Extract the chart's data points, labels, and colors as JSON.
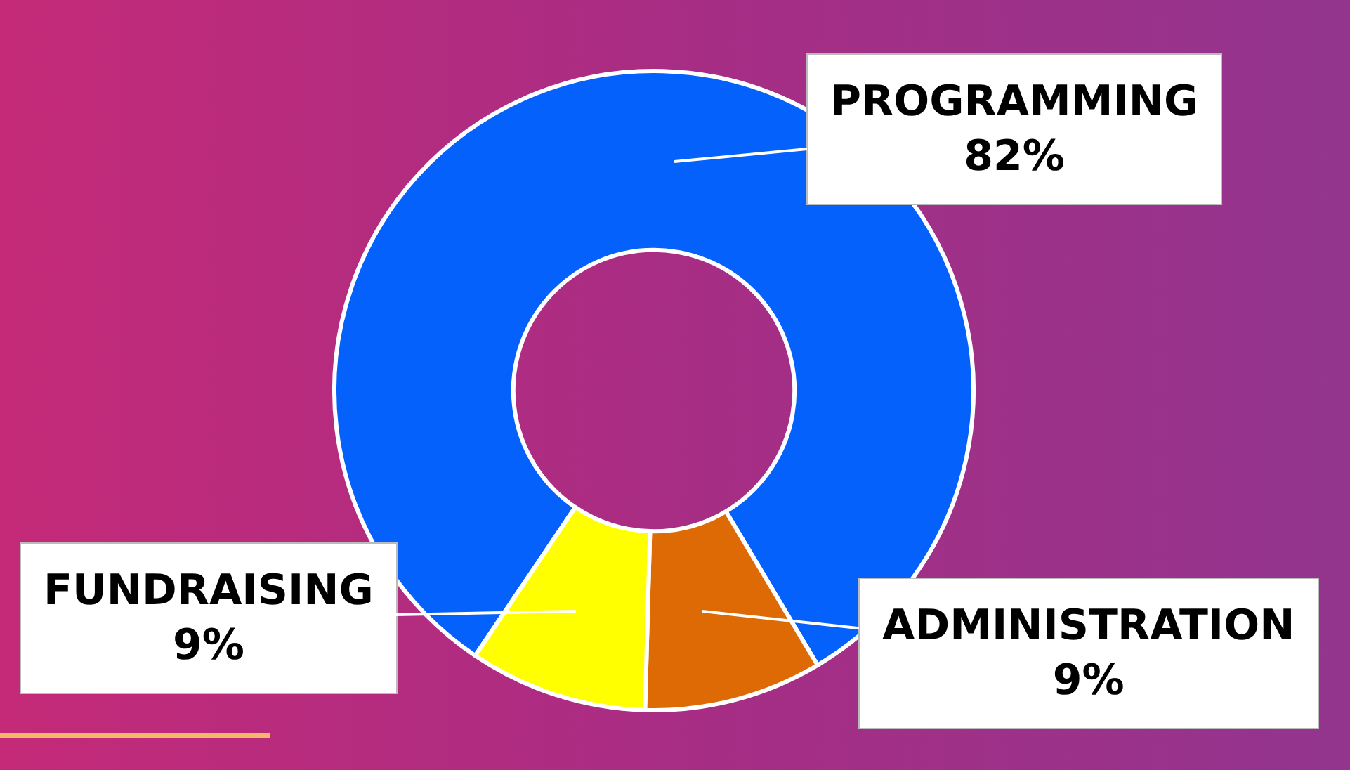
{
  "chart_data": {
    "type": "donut",
    "categories": [
      "PROGRAMMING",
      "ADMINISTRATION",
      "FUNDRAISING"
    ],
    "values": [
      82,
      9,
      9
    ],
    "colors": [
      "#0561fb",
      "#dd6a05",
      "#ffff00"
    ],
    "value_labels": [
      "82%",
      "9%",
      "9%"
    ],
    "legend": false
  }
}
